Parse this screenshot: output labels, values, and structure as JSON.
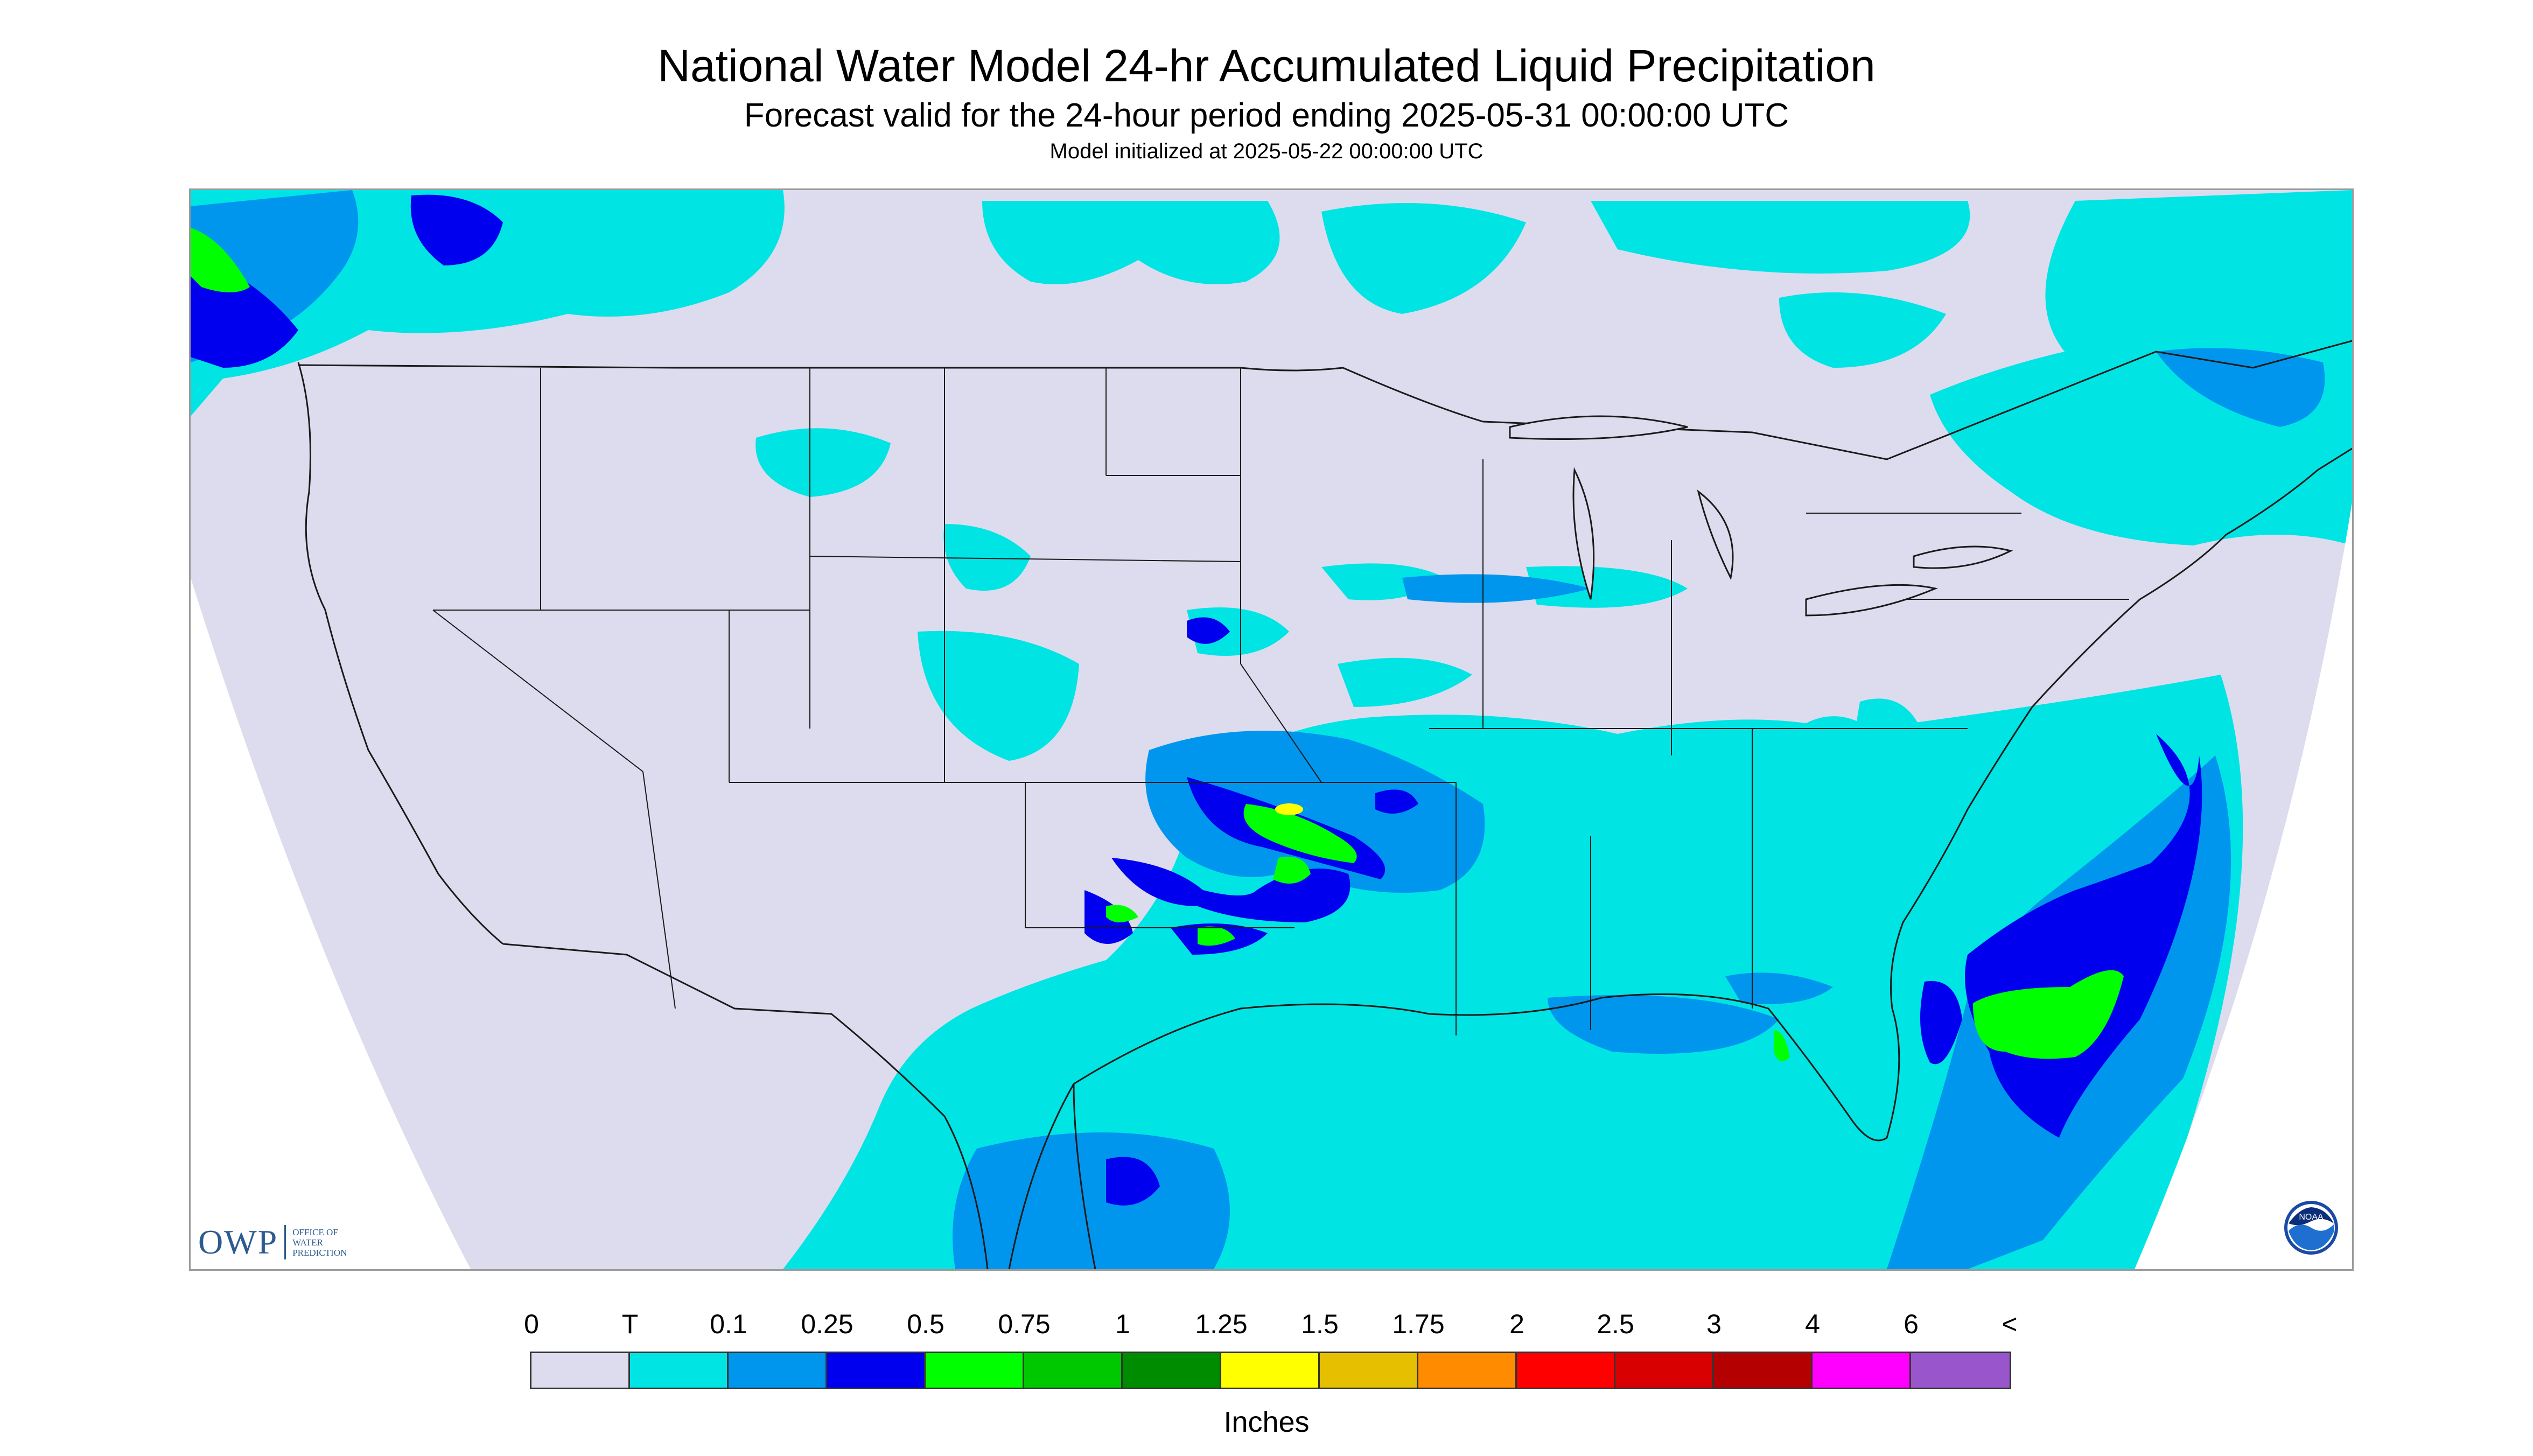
{
  "title": "National Water Model 24-hr Accumulated Liquid Precipitation",
  "subtitle": "Forecast valid for the 24-hour period ending 2025-05-31 00:00:00 UTC",
  "init_line": "Model initialized at 2025-05-22 00:00:00 UTC",
  "owp_logo": {
    "letters": "OWP",
    "subtitle": "OFFICE OF WATER PREDICTION"
  },
  "noaa_logo": {
    "text": "NOAA"
  },
  "legend": {
    "ticks": [
      "0",
      "T",
      "0.1",
      "0.25",
      "0.5",
      "0.75",
      "1",
      "1.25",
      "1.5",
      "1.75",
      "2",
      "2.5",
      "3",
      "4",
      "6",
      "<"
    ],
    "colors": [
      "#dcdcee",
      "#00e4e4",
      "#0096ee",
      "#0000ee",
      "#00ff00",
      "#00c800",
      "#008c00",
      "#ffff00",
      "#e6c000",
      "#ff8c00",
      "#ff0000",
      "#d80000",
      "#b40000",
      "#ff00ff",
      "#9955cc"
    ],
    "units": "Inches"
  },
  "colors": {
    "land": "#dcdcee",
    "outside": "#ffffff",
    "borders": "#1a1a1a"
  },
  "precip_features": [
    {
      "region": "Pacific Northwest coast",
      "amount": "0.5–1 in"
    },
    {
      "region": "Oklahoma / Kansas / Missouri band",
      "amount": "0.5–1.5 in"
    },
    {
      "region": "North Texas",
      "amount": "0.5–1 in"
    },
    {
      "region": "Florida",
      "amount": "0.5–1 in"
    },
    {
      "region": "Western Atlantic offshore",
      "amount": "0.5–1 in"
    },
    {
      "region": "Gulf of Mexico / South Texas",
      "amount": "T–0.5 in"
    },
    {
      "region": "Great Lakes / Northeast / Canada",
      "amount": "T–0.25 in"
    }
  ]
}
